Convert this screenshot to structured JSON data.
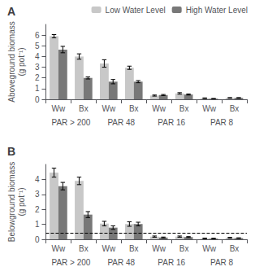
{
  "chart_data": [
    {
      "type": "bar",
      "title": "A",
      "categories": [
        "Ww",
        "Bx",
        "Ww",
        "Bx",
        "Ww",
        "Bx",
        "Ww",
        "Bx"
      ],
      "annotations": [
        "PAR > 200",
        "PAR 48",
        "PAR 16",
        "PAR 8"
      ],
      "ylabel": "Aboveground biomass\n(g pot⁻¹)",
      "ylim": [
        0,
        7
      ],
      "yticks": [
        0,
        1,
        2,
        3,
        4,
        5,
        6
      ],
      "grid": false,
      "legend": "upper right",
      "series": [
        {
          "name": "Low Water Level",
          "color": "#c8c8c8",
          "values": [
            5.9,
            4.0,
            3.35,
            2.95,
            0.35,
            0.55,
            0.1,
            0.13
          ],
          "errors": [
            0.15,
            0.25,
            0.35,
            0.15,
            0.05,
            0.07,
            0.03,
            0.03
          ]
        },
        {
          "name": "High Water Level",
          "color": "#787878",
          "values": [
            4.65,
            2.0,
            1.65,
            1.65,
            0.4,
            0.45,
            0.06,
            0.13
          ],
          "errors": [
            0.3,
            0.1,
            0.2,
            0.1,
            0.05,
            0.05,
            0.02,
            0.03
          ]
        }
      ]
    },
    {
      "type": "bar",
      "title": "B",
      "categories": [
        "Ww",
        "Bx",
        "Ww",
        "Bx",
        "Ww",
        "Bx",
        "Ww",
        "Bx"
      ],
      "annotations": [
        "PAR > 200",
        "PAR 48",
        "PAR 16",
        "PAR 8"
      ],
      "ylabel": "Belowground biomass\n(g pot⁻¹)",
      "ylim": [
        0,
        5
      ],
      "yticks": [
        0,
        1,
        2,
        3,
        4
      ],
      "grid": false,
      "reference_lines": [
        {
          "y": 0.4,
          "line_style": "dashed"
        }
      ],
      "series": [
        {
          "color": "#c8c8c8",
          "values": [
            4.45,
            3.9,
            1.05,
            1.02,
            0.18,
            0.18,
            0.06,
            0.1
          ],
          "errors": [
            0.3,
            0.25,
            0.15,
            0.15,
            0.04,
            0.04,
            0.02,
            0.03
          ]
        },
        {
          "color": "#787878",
          "values": [
            3.55,
            1.65,
            0.78,
            1.02,
            0.12,
            0.15,
            0.05,
            0.08
          ],
          "errors": [
            0.25,
            0.2,
            0.12,
            0.12,
            0.03,
            0.03,
            0.02,
            0.02
          ]
        }
      ]
    }
  ]
}
